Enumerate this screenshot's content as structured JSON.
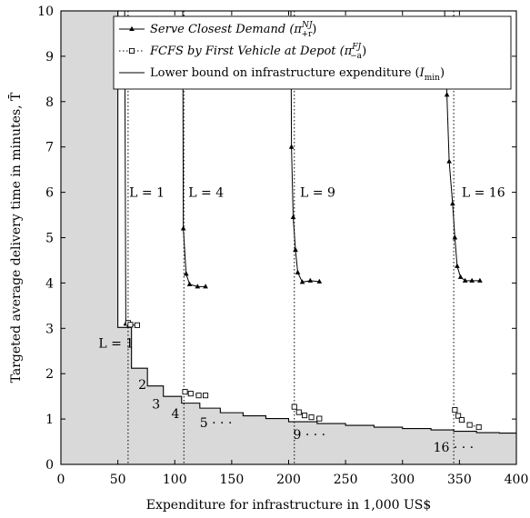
{
  "chart_data": {
    "type": "line",
    "xlabel": "Expenditure for infrastructure in 1,000 US$",
    "ylabel": "Targeted average delivery time in minutes, T̄",
    "xlim": [
      0,
      400
    ],
    "ylim": [
      0,
      10
    ],
    "x_ticks": [
      "0",
      "50",
      "100",
      "150",
      "200",
      "250",
      "300",
      "350",
      "400"
    ],
    "y_ticks": [
      "0",
      "1",
      "2",
      "3",
      "4",
      "5",
      "6",
      "7",
      "8",
      "9",
      "10"
    ],
    "grid": false,
    "legend_position": "top-right",
    "legend": [
      {
        "key": "serve",
        "text": "Serve Closest Demand",
        "math_base": "π",
        "math_sup": "NJ",
        "math_sub": "+r",
        "marker": "triangle",
        "dash": "solid"
      },
      {
        "key": "fcfs",
        "text": "FCFS by First Vehicle at Depot",
        "math_base": "π",
        "math_sup": "FJ",
        "math_sub": "−a",
        "marker": "square",
        "dash": "dotted"
      },
      {
        "key": "lb",
        "text": "Lower bound on infrastructure expenditure",
        "math_base": "I",
        "math_sub": "min",
        "marker": "none",
        "dash": "solid"
      }
    ],
    "lower_bound_step": [
      [
        0,
        10
      ],
      [
        50,
        10
      ],
      [
        50,
        3.02
      ],
      [
        62,
        3.02
      ],
      [
        62,
        2.12
      ],
      [
        76,
        2.12
      ],
      [
        76,
        1.73
      ],
      [
        90,
        1.73
      ],
      [
        90,
        1.5
      ],
      [
        106,
        1.5
      ],
      [
        106,
        1.35
      ],
      [
        122,
        1.35
      ],
      [
        122,
        1.24
      ],
      [
        140,
        1.24
      ],
      [
        140,
        1.14
      ],
      [
        160,
        1.14
      ],
      [
        160,
        1.07
      ],
      [
        180,
        1.07
      ],
      [
        180,
        1.01
      ],
      [
        200,
        1.01
      ],
      [
        200,
        0.94
      ],
      [
        225,
        0.94
      ],
      [
        225,
        0.9
      ],
      [
        250,
        0.9
      ],
      [
        250,
        0.86
      ],
      [
        275,
        0.86
      ],
      [
        275,
        0.82
      ],
      [
        300,
        0.82
      ],
      [
        300,
        0.79
      ],
      [
        325,
        0.79
      ],
      [
        325,
        0.76
      ],
      [
        345,
        0.76
      ],
      [
        345,
        0.73
      ],
      [
        365,
        0.73
      ],
      [
        365,
        0.7
      ],
      [
        385,
        0.7
      ],
      [
        385,
        0.69
      ],
      [
        400,
        0.69
      ]
    ],
    "series": [
      {
        "name": "Serve Closest Demand",
        "group": "L=1",
        "values": [
          [
            56,
            10
          ],
          [
            57,
            3.1
          ],
          [
            60,
            3.07
          ],
          [
            67,
            3.07
          ]
        ]
      },
      {
        "name": "Serve Closest Demand",
        "group": "L=4",
        "values": [
          [
            107,
            10
          ],
          [
            107.5,
            5.2
          ],
          [
            110,
            4.2
          ],
          [
            113,
            3.97
          ],
          [
            120,
            3.92
          ],
          [
            127,
            3.92
          ]
        ]
      },
      {
        "name": "Serve Closest Demand",
        "group": "L=9",
        "values": [
          [
            202,
            10
          ],
          [
            202.5,
            7.0
          ],
          [
            204,
            5.45
          ],
          [
            206,
            4.73
          ],
          [
            208,
            4.23
          ],
          [
            212,
            4.02
          ],
          [
            219,
            4.05
          ],
          [
            227,
            4.03
          ]
        ]
      },
      {
        "name": "Serve Closest Demand",
        "group": "L=16",
        "values": [
          [
            337,
            10
          ],
          [
            339,
            8.15
          ],
          [
            341,
            6.68
          ],
          [
            344,
            5.75
          ],
          [
            346,
            5.0
          ],
          [
            348,
            4.37
          ],
          [
            351,
            4.13
          ],
          [
            355,
            4.05
          ],
          [
            361,
            4.05
          ],
          [
            368,
            4.05
          ]
        ]
      },
      {
        "name": "FCFS by First Vehicle at Depot",
        "group": "L=1",
        "values": [
          [
            59,
            3.12
          ],
          [
            61,
            3.08
          ],
          [
            67,
            3.07
          ]
        ]
      },
      {
        "name": "FCFS by First Vehicle at Depot",
        "group": "L=4",
        "values": [
          [
            109,
            1.6
          ],
          [
            114,
            1.56
          ],
          [
            121,
            1.52
          ],
          [
            127,
            1.52
          ]
        ]
      },
      {
        "name": "FCFS by First Vehicle at Depot",
        "group": "L=9",
        "values": [
          [
            205,
            1.27
          ],
          [
            209,
            1.15
          ],
          [
            214,
            1.08
          ],
          [
            220,
            1.04
          ],
          [
            227,
            1.01
          ]
        ]
      },
      {
        "name": "FCFS by First Vehicle at Depot",
        "group": "L=16",
        "values": [
          [
            346,
            1.2
          ],
          [
            349,
            1.07
          ],
          [
            352,
            0.98
          ],
          [
            359,
            0.87
          ],
          [
            367,
            0.82
          ]
        ]
      }
    ],
    "vertical_guides": [
      59,
      108,
      205,
      345
    ],
    "annotations": [
      {
        "text": "L = 1",
        "x": 60,
        "y": 6.0
      },
      {
        "text": "L = 4",
        "x": 112,
        "y": 6.0
      },
      {
        "text": "L = 9",
        "x": 210,
        "y": 6.0
      },
      {
        "text": "L = 16",
        "x": 352,
        "y": 6.0
      },
      {
        "text": "L = 1",
        "x": 33,
        "y": 2.68
      },
      {
        "text": "2",
        "x": 68,
        "y": 1.76
      },
      {
        "text": "3",
        "x": 80,
        "y": 1.33
      },
      {
        "text": "4",
        "x": 97,
        "y": 1.12
      },
      {
        "text": "5 · · ·",
        "x": 122,
        "y": 0.92
      },
      {
        "text": "9 · · ·",
        "x": 204,
        "y": 0.66
      },
      {
        "text": "16 · · ·",
        "x": 327,
        "y": 0.38
      }
    ]
  }
}
